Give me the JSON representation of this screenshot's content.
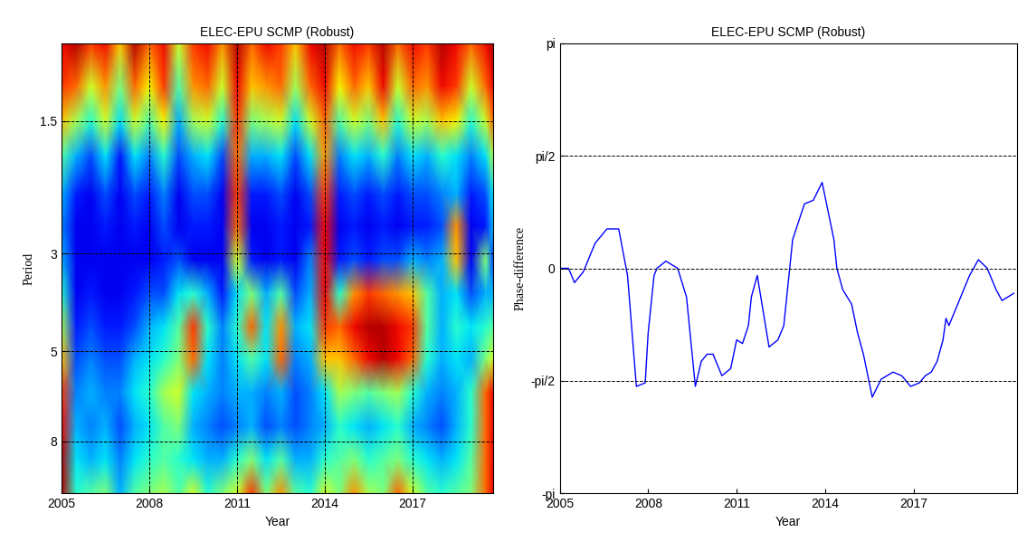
{
  "chart_data": [
    {
      "type": "heatmap",
      "title": "ELEC-EPU SCMP (Robust)",
      "xlabel": "Year",
      "ylabel": "Period",
      "log": "y",
      "grid": true,
      "xlim": [
        2005,
        2019.75
      ],
      "ylim": [
        10.5,
        1.0
      ],
      "xticks": [
        2005,
        2008,
        2011,
        2014,
        2017
      ],
      "yticks": [
        1.5,
        3,
        5,
        8
      ],
      "clim": [
        0,
        1
      ],
      "x": [
        2005.0,
        2005.5,
        2006.0,
        2006.5,
        2007.0,
        2007.5,
        2008.0,
        2008.5,
        2009.0,
        2009.5,
        2010.0,
        2010.5,
        2011.0,
        2011.5,
        2012.0,
        2012.5,
        2013.0,
        2013.5,
        2014.0,
        2014.5,
        2015.0,
        2015.5,
        2016.0,
        2016.5,
        2017.0,
        2017.5,
        2018.0,
        2018.5,
        2019.0,
        2019.5,
        2019.75
      ],
      "y": [
        1.0,
        1.25,
        1.5,
        1.8,
        2.2,
        2.6,
        3.1,
        3.7,
        4.4,
        5.2,
        6.2,
        7.4,
        8.8,
        10.5
      ],
      "cells": [
        [
          0.9,
          0.95,
          0.85,
          0.9,
          0.7,
          0.95,
          0.8,
          0.9,
          0.6,
          0.85,
          0.9,
          0.75,
          0.95,
          0.8,
          0.9,
          0.85,
          0.7,
          0.9,
          0.95,
          0.8,
          0.9,
          0.85,
          0.95,
          0.8,
          0.9,
          0.85,
          0.95,
          0.9,
          0.8,
          0.9,
          0.95
        ],
        [
          0.85,
          0.8,
          0.6,
          0.75,
          0.5,
          0.8,
          0.65,
          0.85,
          0.45,
          0.75,
          0.8,
          0.6,
          0.9,
          0.7,
          0.75,
          0.8,
          0.55,
          0.8,
          0.9,
          0.65,
          0.8,
          0.7,
          0.9,
          0.6,
          0.8,
          0.75,
          0.9,
          0.85,
          0.6,
          0.8,
          0.9
        ],
        [
          0.7,
          0.55,
          0.4,
          0.6,
          0.35,
          0.6,
          0.45,
          0.65,
          0.3,
          0.55,
          0.6,
          0.4,
          0.85,
          0.5,
          0.55,
          0.6,
          0.35,
          0.6,
          0.8,
          0.45,
          0.6,
          0.5,
          0.7,
          0.4,
          0.6,
          0.55,
          0.7,
          0.65,
          0.4,
          0.6,
          0.8
        ],
        [
          0.45,
          0.3,
          0.2,
          0.35,
          0.15,
          0.35,
          0.25,
          0.4,
          0.2,
          0.3,
          0.35,
          0.2,
          0.8,
          0.3,
          0.3,
          0.35,
          0.2,
          0.35,
          0.75,
          0.25,
          0.35,
          0.3,
          0.4,
          0.25,
          0.35,
          0.3,
          0.4,
          0.35,
          0.25,
          0.35,
          0.55
        ],
        [
          0.3,
          0.15,
          0.1,
          0.2,
          0.1,
          0.2,
          0.15,
          0.25,
          0.1,
          0.2,
          0.2,
          0.1,
          0.85,
          0.15,
          0.15,
          0.2,
          0.1,
          0.2,
          0.85,
          0.15,
          0.2,
          0.15,
          0.2,
          0.15,
          0.2,
          0.2,
          0.25,
          0.3,
          0.15,
          0.2,
          0.35
        ],
        [
          0.25,
          0.1,
          0.1,
          0.15,
          0.1,
          0.15,
          0.1,
          0.2,
          0.1,
          0.15,
          0.15,
          0.1,
          0.8,
          0.1,
          0.1,
          0.15,
          0.1,
          0.15,
          0.9,
          0.1,
          0.15,
          0.1,
          0.15,
          0.1,
          0.15,
          0.15,
          0.2,
          0.75,
          0.1,
          0.15,
          0.3
        ],
        [
          0.3,
          0.1,
          0.1,
          0.1,
          0.1,
          0.1,
          0.1,
          0.15,
          0.2,
          0.1,
          0.1,
          0.1,
          0.6,
          0.15,
          0.1,
          0.15,
          0.1,
          0.25,
          0.9,
          0.15,
          0.2,
          0.15,
          0.2,
          0.2,
          0.3,
          0.25,
          0.3,
          0.7,
          0.1,
          0.5,
          0.2
        ],
        [
          0.4,
          0.1,
          0.15,
          0.1,
          0.1,
          0.15,
          0.2,
          0.2,
          0.35,
          0.4,
          0.3,
          0.15,
          0.35,
          0.5,
          0.3,
          0.45,
          0.2,
          0.3,
          0.9,
          0.4,
          0.75,
          0.85,
          0.8,
          0.75,
          0.7,
          0.45,
          0.3,
          0.35,
          0.2,
          0.3,
          0.3
        ],
        [
          0.55,
          0.15,
          0.2,
          0.15,
          0.15,
          0.2,
          0.3,
          0.35,
          0.45,
          0.85,
          0.4,
          0.25,
          0.4,
          0.8,
          0.35,
          0.75,
          0.3,
          0.35,
          0.85,
          0.8,
          0.9,
          0.95,
          0.95,
          0.9,
          0.85,
          0.45,
          0.3,
          0.4,
          0.35,
          0.4,
          0.45
        ],
        [
          0.7,
          0.2,
          0.25,
          0.2,
          0.2,
          0.3,
          0.35,
          0.4,
          0.5,
          0.8,
          0.35,
          0.25,
          0.35,
          0.45,
          0.35,
          0.8,
          0.25,
          0.3,
          0.7,
          0.7,
          0.8,
          0.9,
          0.95,
          0.9,
          0.8,
          0.4,
          0.3,
          0.35,
          0.3,
          0.5,
          0.6
        ],
        [
          0.85,
          0.25,
          0.3,
          0.25,
          0.25,
          0.35,
          0.4,
          0.55,
          0.6,
          0.35,
          0.3,
          0.25,
          0.3,
          0.3,
          0.25,
          0.3,
          0.2,
          0.25,
          0.35,
          0.55,
          0.5,
          0.45,
          0.5,
          0.55,
          0.4,
          0.3,
          0.25,
          0.3,
          0.4,
          0.8,
          0.9
        ],
        [
          0.9,
          0.3,
          0.25,
          0.3,
          0.2,
          0.3,
          0.35,
          0.45,
          0.5,
          0.3,
          0.25,
          0.2,
          0.25,
          0.3,
          0.2,
          0.25,
          0.2,
          0.25,
          0.3,
          0.4,
          0.35,
          0.3,
          0.35,
          0.4,
          0.3,
          0.25,
          0.2,
          0.3,
          0.4,
          0.8,
          0.9
        ],
        [
          0.95,
          0.35,
          0.3,
          0.35,
          0.25,
          0.35,
          0.4,
          0.45,
          0.4,
          0.35,
          0.3,
          0.3,
          0.4,
          0.5,
          0.35,
          0.45,
          0.3,
          0.3,
          0.4,
          0.45,
          0.5,
          0.4,
          0.45,
          0.5,
          0.4,
          0.35,
          0.3,
          0.35,
          0.45,
          0.8,
          0.9
        ],
        [
          0.95,
          0.4,
          0.45,
          0.5,
          0.3,
          0.45,
          0.5,
          0.55,
          0.45,
          0.6,
          0.4,
          0.5,
          0.6,
          0.85,
          0.5,
          0.75,
          0.45,
          0.4,
          0.6,
          0.5,
          0.75,
          0.55,
          0.5,
          0.8,
          0.6,
          0.45,
          0.4,
          0.45,
          0.5,
          0.8,
          0.9
        ]
      ]
    },
    {
      "type": "line",
      "title": "ELEC-EPU SCMP (Robust)",
      "xlabel": "Year",
      "ylabel": "Phase-difference",
      "grid": "y",
      "color": "#0000ff",
      "xlim": [
        2005,
        2020.5
      ],
      "ylim": [
        -3.1416,
        3.1416
      ],
      "xticks": [
        2005,
        2008,
        2011,
        2014,
        2017
      ],
      "yticks": [
        {
          "value": -3.1416,
          "label": "-pi"
        },
        {
          "value": -1.5708,
          "label": "-pi/2"
        },
        0,
        {
          "value": 1.5708,
          "label": "pi/2"
        },
        {
          "value": 3.1416,
          "label": "pi"
        }
      ],
      "x": [
        2005.0,
        2005.3,
        2005.5,
        2005.8,
        2006.2,
        2006.6,
        2006.9,
        2007.0,
        2007.3,
        2007.6,
        2007.9,
        2008.0,
        2008.2,
        2008.3,
        2008.6,
        2009.0,
        2009.3,
        2009.6,
        2009.8,
        2010.0,
        2010.2,
        2010.5,
        2010.8,
        2011.0,
        2011.2,
        2011.4,
        2011.5,
        2011.7,
        2011.9,
        2012.1,
        2012.4,
        2012.6,
        2012.8,
        2012.9,
        2013.1,
        2013.3,
        2013.6,
        2013.9,
        2014.1,
        2014.3,
        2014.4,
        2014.6,
        2014.9,
        2015.1,
        2015.3,
        2015.6,
        2015.9,
        2016.3,
        2016.6,
        2016.9,
        2017.2,
        2017.4,
        2017.6,
        2017.8,
        2018.0,
        2018.1,
        2018.2,
        2018.4,
        2018.6,
        2018.9,
        2019.2,
        2019.5,
        2019.8,
        2020.0,
        2020.4
      ],
      "values": [
        0.0,
        0.0,
        -0.2,
        -0.05,
        0.35,
        0.55,
        0.55,
        0.55,
        -0.1,
        -1.65,
        -1.6,
        -0.9,
        -0.1,
        0.0,
        0.1,
        0.0,
        -0.4,
        -1.65,
        -1.3,
        -1.2,
        -1.2,
        -1.5,
        -1.4,
        -1.0,
        -1.05,
        -0.8,
        -0.4,
        -0.1,
        -0.6,
        -1.1,
        -1.0,
        -0.8,
        0.0,
        0.4,
        0.65,
        0.9,
        0.95,
        1.2,
        0.8,
        0.4,
        0.0,
        -0.3,
        -0.5,
        -0.9,
        -1.2,
        -1.8,
        -1.55,
        -1.45,
        -1.5,
        -1.65,
        -1.6,
        -1.5,
        -1.45,
        -1.3,
        -1.0,
        -0.7,
        -0.8,
        -0.6,
        -0.4,
        -0.1,
        0.12,
        0.0,
        -0.3,
        -0.45,
        -0.35
      ]
    }
  ]
}
